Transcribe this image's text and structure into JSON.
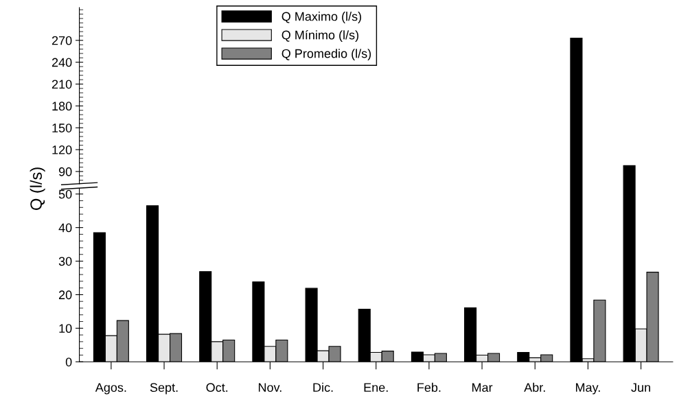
{
  "chart_data": [
    {
      "type": "bar",
      "categories": [
        null,
        null,
        null,
        null,
        null,
        null,
        null,
        null,
        null,
        null,
        null
      ],
      "ylim": [
        73,
        315
      ],
      "yticks": [
        90,
        120,
        150,
        180,
        210,
        240,
        270
      ],
      "tick_labels": "y",
      "grid": false,
      "series": [
        {
          "color": "#000000",
          "values": [
            null,
            null,
            null,
            null,
            null,
            null,
            null,
            null,
            null,
            273,
            98
          ]
        },
        {
          "color": "#e6e6e6",
          "values": [
            null,
            null,
            null,
            null,
            null,
            null,
            null,
            null,
            null,
            null,
            null
          ]
        },
        {
          "color": "#808080",
          "values": [
            null,
            null,
            null,
            null,
            null,
            null,
            null,
            null,
            null,
            null,
            null
          ]
        }
      ]
    },
    {
      "type": "bar",
      "categories": [
        "Agos.",
        "Sept.",
        "Oct.",
        "Nov.",
        "Dic.",
        "Ene.",
        "Feb.",
        "Mar",
        "Abr.",
        "May.",
        "Jun"
      ],
      "ylim": [
        0,
        51.6
      ],
      "yticks": [
        0,
        10,
        20,
        30,
        40,
        50
      ],
      "ylabel": "Q (l/s)",
      "grid": false,
      "legend": "top",
      "series": [
        {
          "name": "Q Maximo (l/s)",
          "color": "#000000",
          "values": [
            38.5,
            46.5,
            26.9,
            23.8,
            21.9,
            15.7,
            2.9,
            16.1,
            2.8,
            null,
            null
          ]
        },
        {
          "name": "Q Mínimo (l/s)",
          "color": "#e6e6e6",
          "values": [
            7.8,
            8.2,
            6.0,
            4.6,
            3.3,
            2.8,
            2.1,
            2.0,
            1.2,
            0.9,
            9.8
          ]
        },
        {
          "name": "Q Promedio (l/s)",
          "color": "#808080",
          "values": [
            12.3,
            8.4,
            6.5,
            6.5,
            4.6,
            3.2,
            2.5,
            2.5,
            2.1,
            18.4,
            26.7
          ]
        }
      ]
    }
  ]
}
